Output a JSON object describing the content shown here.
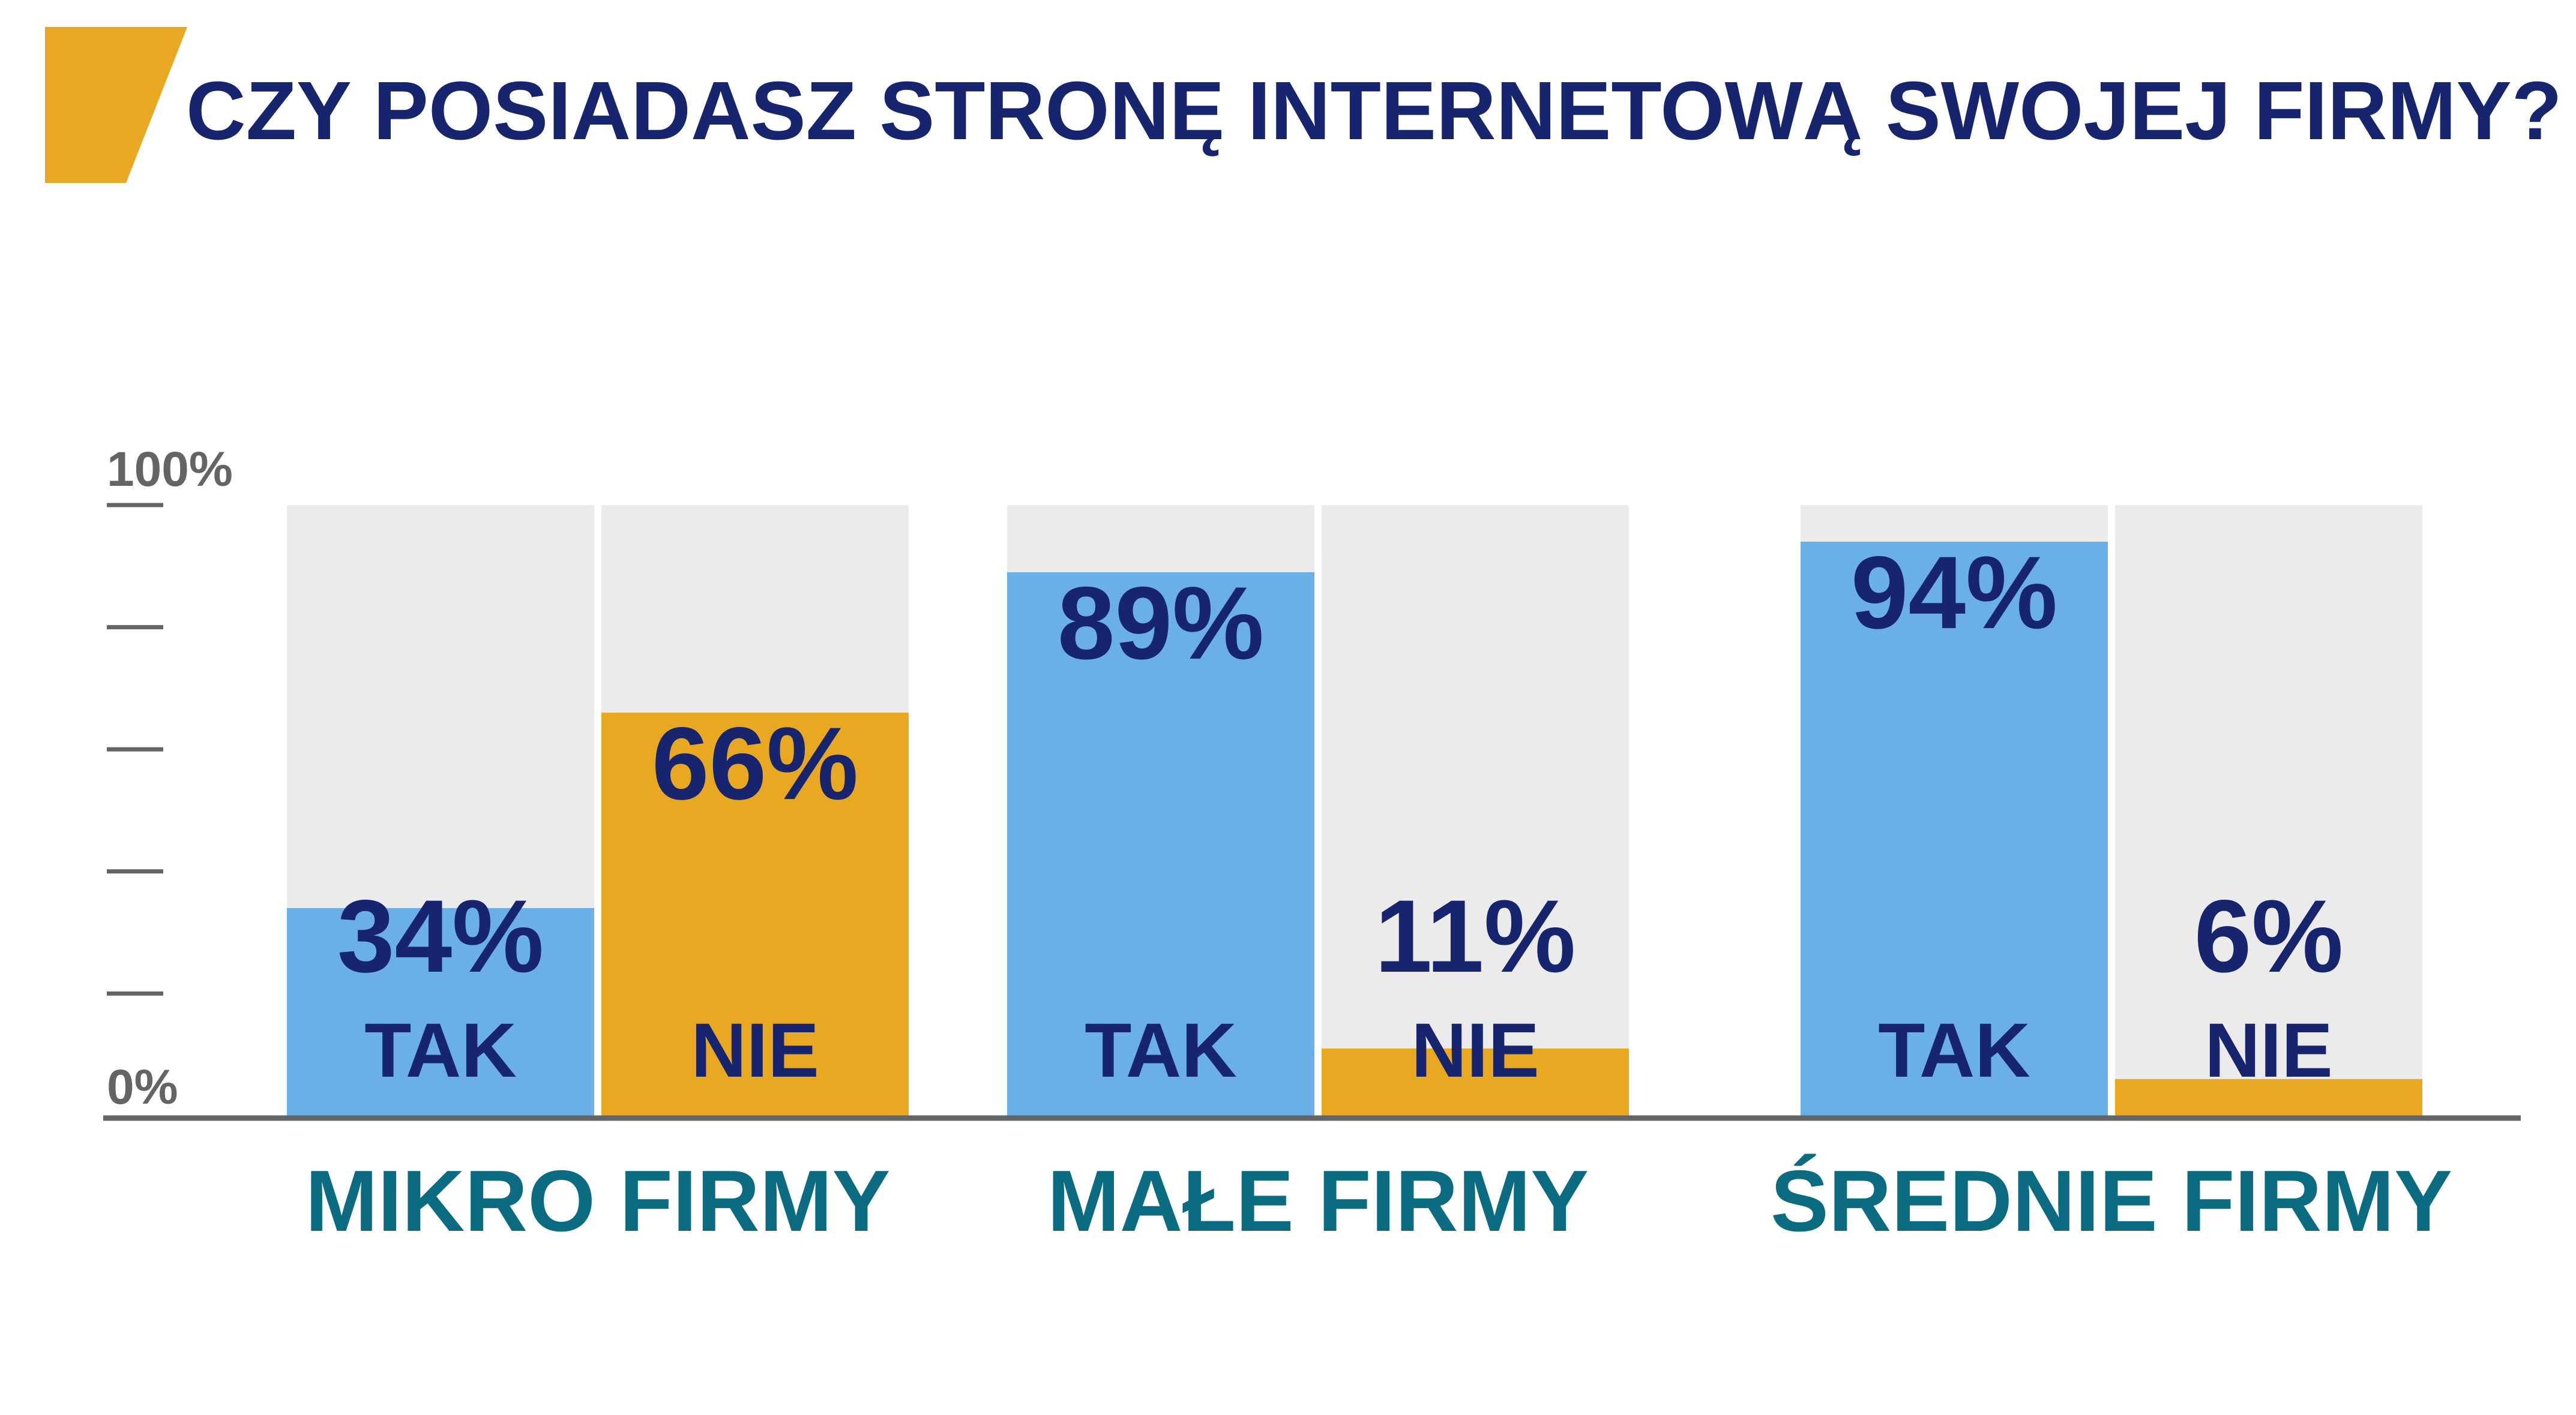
{
  "colors": {
    "accent": "#e9a822",
    "title": "#16256e",
    "value_text": "#16256e",
    "category_text": "#0b6b80",
    "axis": "#636466",
    "bar_background": "#ebebeb",
    "tak": "#6aafe6",
    "nie": "#e9a822"
  },
  "chart_data": {
    "type": "bar",
    "title": "CZY POSIADASZ STRONĘ INTERNETOWĄ SWOJEJ FIRMY?",
    "xlabel": "",
    "ylabel": "",
    "ylim": [
      0,
      100
    ],
    "y_ticks": [
      0,
      20,
      40,
      60,
      80,
      100
    ],
    "y_tick_labels": [
      "0%",
      "",
      "",
      "",
      "",
      "100%"
    ],
    "grid": false,
    "legend": "none",
    "categories": [
      "MIKRO FIRMY",
      "MAŁE FIRMY",
      "ŚREDNIE FIRMY"
    ],
    "series": [
      {
        "name": "TAK",
        "values": [
          34,
          89,
          94
        ],
        "value_labels": [
          "34%",
          "89%",
          "94%"
        ]
      },
      {
        "name": "NIE",
        "values": [
          66,
          11,
          6
        ],
        "value_labels": [
          "66%",
          "11%",
          "6%"
        ]
      }
    ]
  }
}
